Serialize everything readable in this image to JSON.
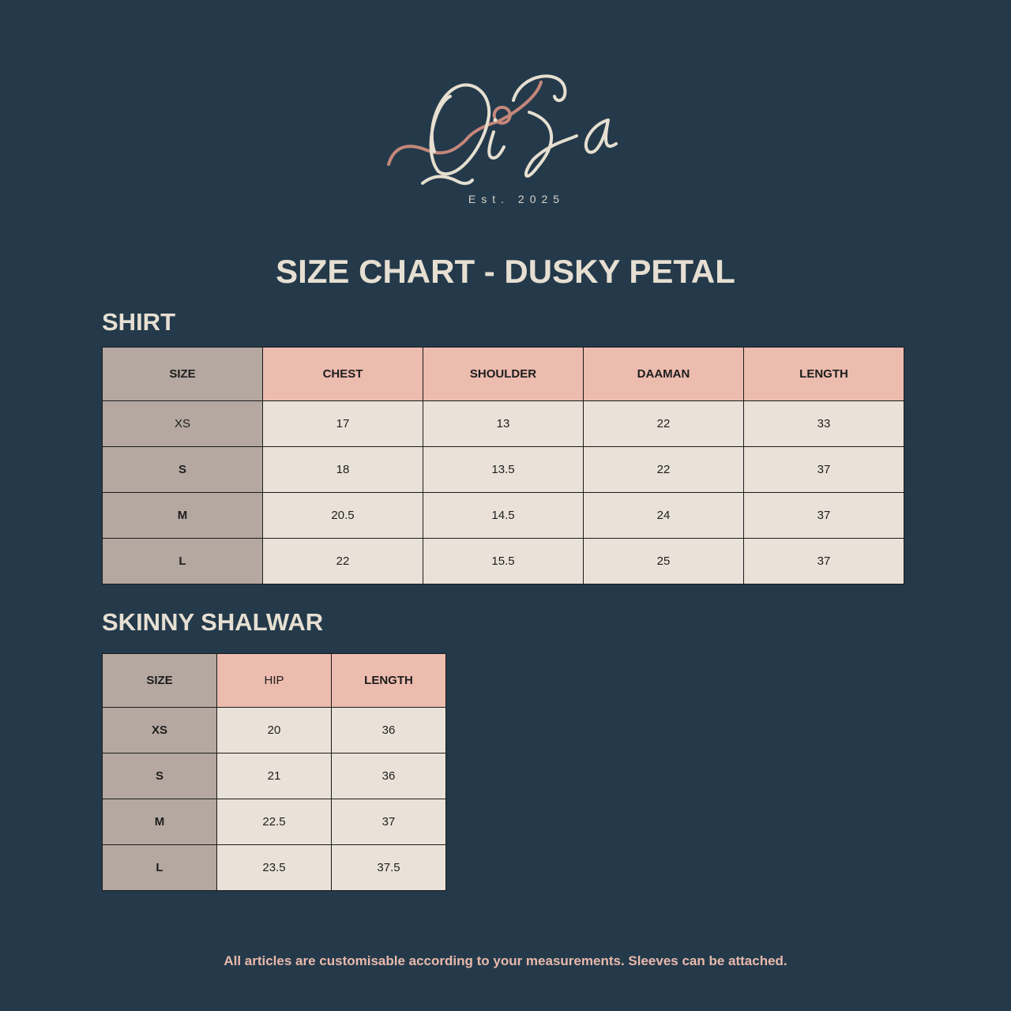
{
  "brand": {
    "logo_text": "QiSa",
    "established": "Est. 2025"
  },
  "title": "SIZE CHART - DUSKY PETAL",
  "shirt": {
    "heading": "SHIRT",
    "columns": [
      "SIZE",
      "CHEST",
      "SHOULDER",
      "DAAMAN",
      "LENGTH"
    ],
    "rows": [
      [
        "XS",
        "17",
        "13",
        "22",
        "33"
      ],
      [
        "S",
        "18",
        "13.5",
        "22",
        "37"
      ],
      [
        "M",
        "20.5",
        "14.5",
        "24",
        "37"
      ],
      [
        "L",
        "22",
        "15.5",
        "25",
        "37"
      ]
    ]
  },
  "shalwar": {
    "heading": "SKINNY SHALWAR",
    "columns": [
      "SIZE",
      "HIP",
      "LENGTH"
    ],
    "rows": [
      [
        "XS",
        "20",
        "36"
      ],
      [
        "S",
        "21",
        "36"
      ],
      [
        "M",
        "22.5",
        "37"
      ],
      [
        "L",
        "23.5",
        "37.5"
      ]
    ]
  },
  "footer": "All articles are customisable according to your measurements. Sleeves can be attached.",
  "colors": {
    "background": "#243a4b",
    "header": "#ecbcaf",
    "size_column": "#b4a8a0",
    "cell": "#eae2d8",
    "footer_text": "#e9b9ab",
    "logo_accent": "#c4877a"
  }
}
